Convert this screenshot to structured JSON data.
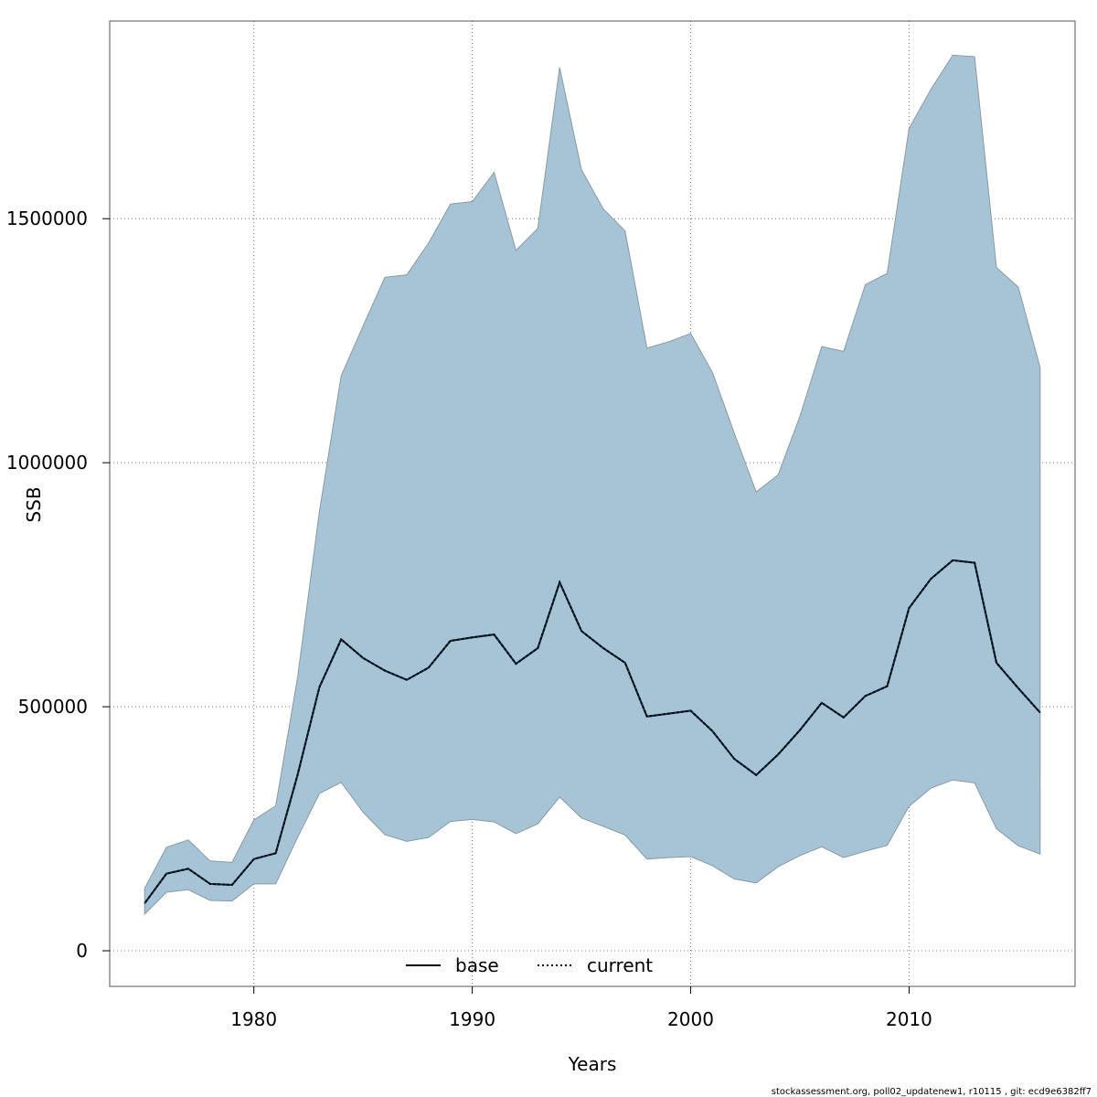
{
  "chart_data": {
    "type": "area",
    "title": "",
    "xlabel": "Years",
    "ylabel": "SSB",
    "xlim": [
      1973.4,
      2017.6
    ],
    "ylim": [
      -73000,
      1905000
    ],
    "x_ticks": [
      1980,
      1990,
      2000,
      2010
    ],
    "y_ticks": [
      0,
      500000,
      1000000,
      1500000
    ],
    "y_tick_labels": [
      "0",
      "500000",
      "1000000",
      "1500000"
    ],
    "grid": true,
    "legend_position": "bottom",
    "legend": [
      {
        "label": "base",
        "style": "solid",
        "color": "#000000"
      },
      {
        "label": "current",
        "style": "dotted",
        "color": "#000000"
      }
    ],
    "band_color": "#a6c4d5",
    "band_edge_color": "#8a9aa3",
    "x": [
      1975,
      1976,
      1977,
      1978,
      1979,
      1980,
      1981,
      1982,
      1983,
      1984,
      1985,
      1986,
      1987,
      1988,
      1989,
      1990,
      1991,
      1992,
      1993,
      1994,
      1995,
      1996,
      1997,
      1998,
      1999,
      2000,
      2001,
      2002,
      2003,
      2004,
      2005,
      2006,
      2007,
      2008,
      2009,
      2010,
      2011,
      2012,
      2013,
      2014,
      2015,
      2016
    ],
    "series": [
      {
        "name": "base",
        "style": "solid",
        "values": [
          97000,
          158000,
          168000,
          137000,
          135000,
          188000,
          200000,
          360000,
          540000,
          638000,
          600000,
          574000,
          555000,
          580000,
          635000,
          642000,
          648000,
          588000,
          620000,
          755000,
          655000,
          620000,
          590000,
          480000,
          486000,
          492000,
          450000,
          393000,
          360000,
          402000,
          452000,
          508000,
          478000,
          522000,
          542000,
          702000,
          762000,
          800000,
          795000,
          590000,
          538000,
          488000
        ]
      },
      {
        "name": "current",
        "style": "dotted",
        "values": [
          97000,
          158000,
          168000,
          137000,
          135000,
          188000,
          200000,
          360000,
          540000,
          638000,
          600000,
          574000,
          555000,
          580000,
          635000,
          642000,
          648000,
          588000,
          620000,
          755000,
          655000,
          620000,
          590000,
          480000,
          486000,
          492000,
          450000,
          393000,
          360000,
          402000,
          452000,
          508000,
          478000,
          522000,
          542000,
          702000,
          762000,
          800000,
          795000,
          590000,
          538000,
          488000
        ]
      }
    ],
    "band": {
      "lower": [
        75000,
        120000,
        125000,
        103000,
        102000,
        137000,
        137000,
        232000,
        322000,
        345000,
        284000,
        238000,
        224000,
        232000,
        265000,
        269000,
        264000,
        240000,
        260000,
        315000,
        272000,
        255000,
        237000,
        188000,
        191000,
        193000,
        174000,
        147000,
        139000,
        172000,
        195000,
        213000,
        191000,
        204000,
        216000,
        296000,
        333000,
        350000,
        344000,
        250000,
        215000,
        198000
      ],
      "upper": [
        128000,
        212000,
        227000,
        184000,
        181000,
        268000,
        297000,
        560000,
        900000,
        1178000,
        1280000,
        1380000,
        1385000,
        1450000,
        1530000,
        1535000,
        1595000,
        1435000,
        1480000,
        1810000,
        1600000,
        1520000,
        1475000,
        1235000,
        1248000,
        1265000,
        1185000,
        1060000,
        940000,
        975000,
        1095000,
        1238000,
        1228000,
        1365000,
        1388000,
        1685000,
        1765000,
        1835000,
        1832000,
        1400000,
        1360000,
        1195000
      ]
    }
  },
  "footer": "stockassessment.org, poll02_updatenew1, r10115 , git: ecd9e6382ff7"
}
